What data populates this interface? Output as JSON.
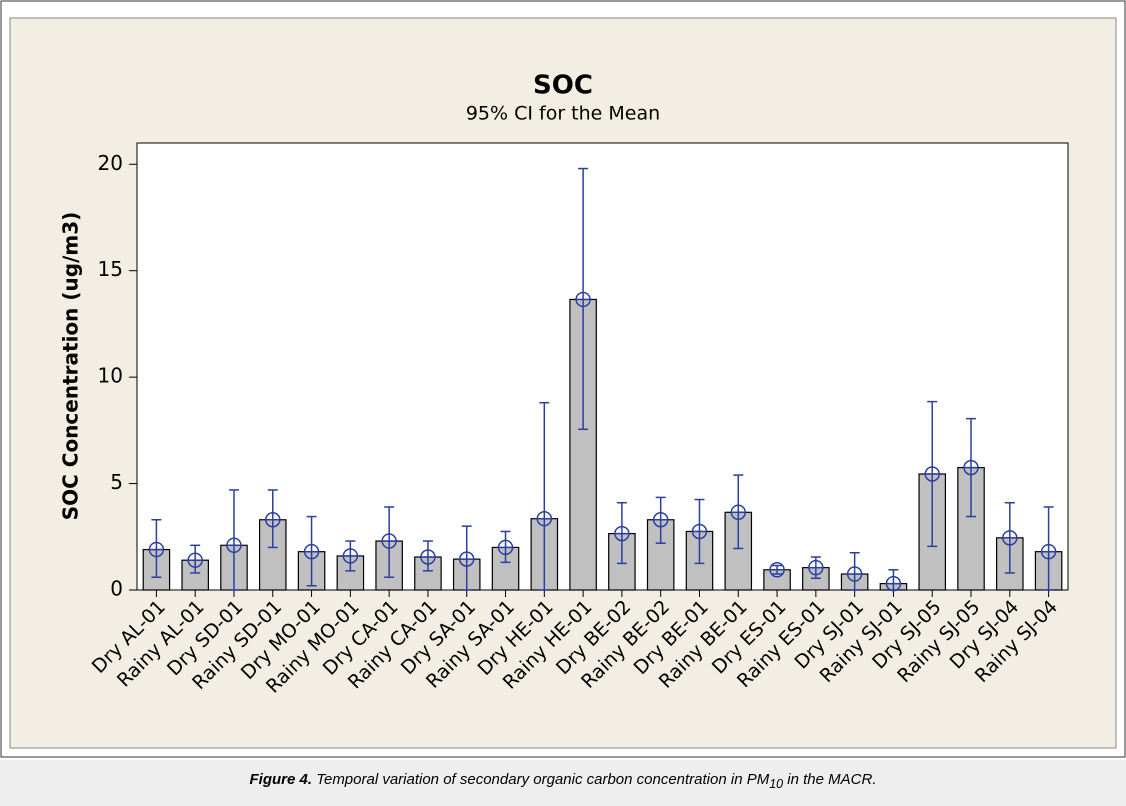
{
  "chart_data": {
    "type": "bar",
    "title": "SOC",
    "subtitle": "95% CI for the Mean",
    "y_label": "SOC Concentration (ug/m3)",
    "categories": [
      "Dry AL-01",
      "Rainy AL-01",
      "Dry SD-01",
      "Rainy SD-01",
      "Dry MO-01",
      "Rainy MO-01",
      "Dry CA-01",
      "Rainy CA-01",
      "Dry SA-01",
      "Rainy SA-01",
      "Dry HE-01",
      "Rainy HE-01",
      "Dry BE-02",
      "Rainy BE-02",
      "Dry BE-01",
      "Rainy BE-01",
      "Dry ES-01",
      "Rainy ES-01",
      "Dry SJ-01",
      "Rainy SJ-01",
      "Dry SJ-05",
      "Rainy SJ-05",
      "Dry SJ-04",
      "Rainy SJ-04"
    ],
    "values": [
      1.9,
      1.4,
      2.1,
      3.3,
      1.8,
      1.6,
      2.3,
      1.55,
      1.45,
      2.0,
      3.35,
      13.65,
      2.65,
      3.3,
      2.75,
      3.65,
      0.95,
      1.05,
      0.75,
      0.3,
      5.45,
      5.75,
      2.45,
      1.8
    ],
    "ci_lower": [
      0.6,
      0.8,
      0,
      2.0,
      0.2,
      0.9,
      0.6,
      0.9,
      0,
      1.3,
      0,
      7.55,
      1.25,
      2.2,
      1.25,
      1.95,
      0.75,
      0.55,
      0,
      0,
      2.05,
      3.45,
      0.8,
      0
    ],
    "ci_upper": [
      3.3,
      2.1,
      4.7,
      4.7,
      3.45,
      2.3,
      3.9,
      2.3,
      3.0,
      2.75,
      8.8,
      19.8,
      4.1,
      4.35,
      4.25,
      5.4,
      1.15,
      1.55,
      1.75,
      0.95,
      8.85,
      8.05,
      4.1,
      3.9
    ],
    "color": "#c0c0c0",
    "error_color": "#2b3fa0",
    "ylim": [
      0,
      21
    ],
    "yticks": [
      0,
      5,
      10,
      15,
      20
    ],
    "grid": false
  },
  "caption": {
    "label": "Figure 4.",
    "text": "Temporal variation of secondary organic carbon concentration in PM",
    "subscript": "10",
    "text_end": " in the MACR."
  }
}
